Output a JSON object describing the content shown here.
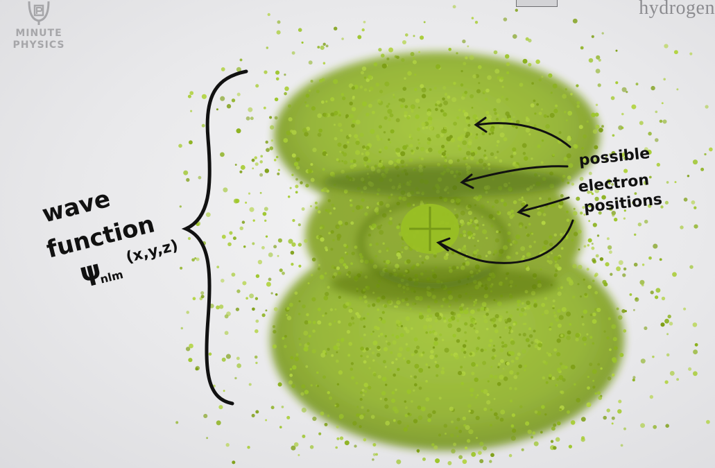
{
  "logo": {
    "text": "MINUTE\nPHYSICS",
    "icon": "minutephysics-logo-icon"
  },
  "header": {
    "title": "hydrogen"
  },
  "annotations": {
    "left_lines": [
      "wave",
      "function"
    ],
    "psi_symbol": "ψ",
    "psi_subscript": "nlm",
    "psi_args": "(x,y,z)",
    "right_labels": [
      "possible",
      "electron",
      "positions"
    ]
  },
  "colors": {
    "orbital_green": "#8fb51f",
    "orbital_dark": "#5f7f12",
    "ink": "#111111",
    "background": "#ececee"
  }
}
